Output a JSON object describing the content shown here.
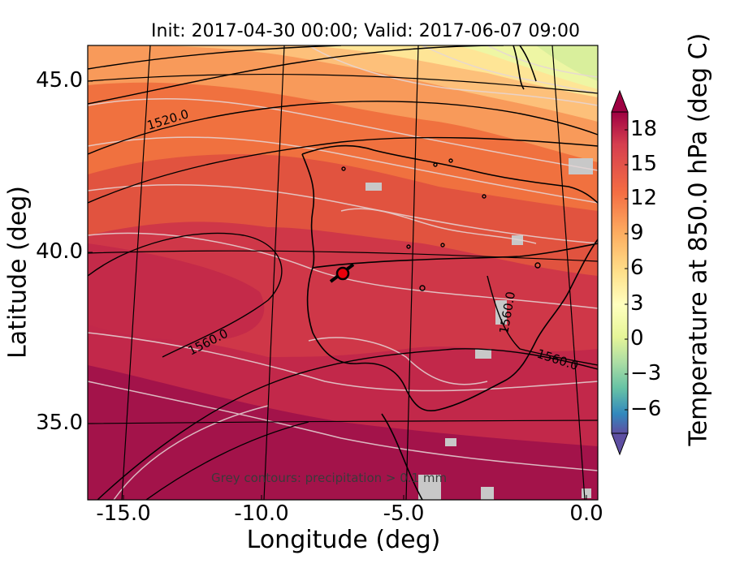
{
  "title": "Init: 2017-04-30 00:00; Valid: 2017-06-07 09:00",
  "x_axis": {
    "label": "Longitude (deg)",
    "ticks": [
      "-15.0",
      "-10.0",
      "-5.0",
      "0.0"
    ]
  },
  "y_axis": {
    "label": "Latitude (deg)",
    "ticks": [
      "45.0",
      "40.0",
      "35.0"
    ]
  },
  "colorbar": {
    "label": "Temperature at 850.0 hPa (deg C)",
    "ticks": [
      "18",
      "15",
      "12",
      "9",
      "6",
      "3",
      "0",
      "−3",
      "−6"
    ],
    "range": [
      -8,
      20
    ],
    "colormap": "Spectral_r"
  },
  "contour_labels": {
    "geopotential_1520": "1520.0",
    "geopotential_1560_west": "1560.0",
    "geopotential_1560_east": "1560.0",
    "geopotential_1560_vertical": "1560.0"
  },
  "annotation": "Grey contours: precipitation > 0.1 mm",
  "marker": {
    "location_name": "station",
    "color": "#e8000b",
    "outline": "#000000"
  },
  "chart_data": {
    "type": "heatmap",
    "title": "Init: 2017-04-30 00:00; Valid: 2017-06-07 09:00",
    "xlabel": "Longitude (deg)",
    "ylabel": "Latitude (deg)",
    "xlim": [
      -16,
      0.2
    ],
    "ylim": [
      32.8,
      46.1
    ],
    "colorbar_label": "Temperature at 850.0 hPa (deg C)",
    "colorbar_range": [
      -8,
      20
    ],
    "contour_levels_labeled": [
      1520.0,
      1560.0
    ],
    "marker_lon": -7.6,
    "marker_lat": 39.4
  }
}
